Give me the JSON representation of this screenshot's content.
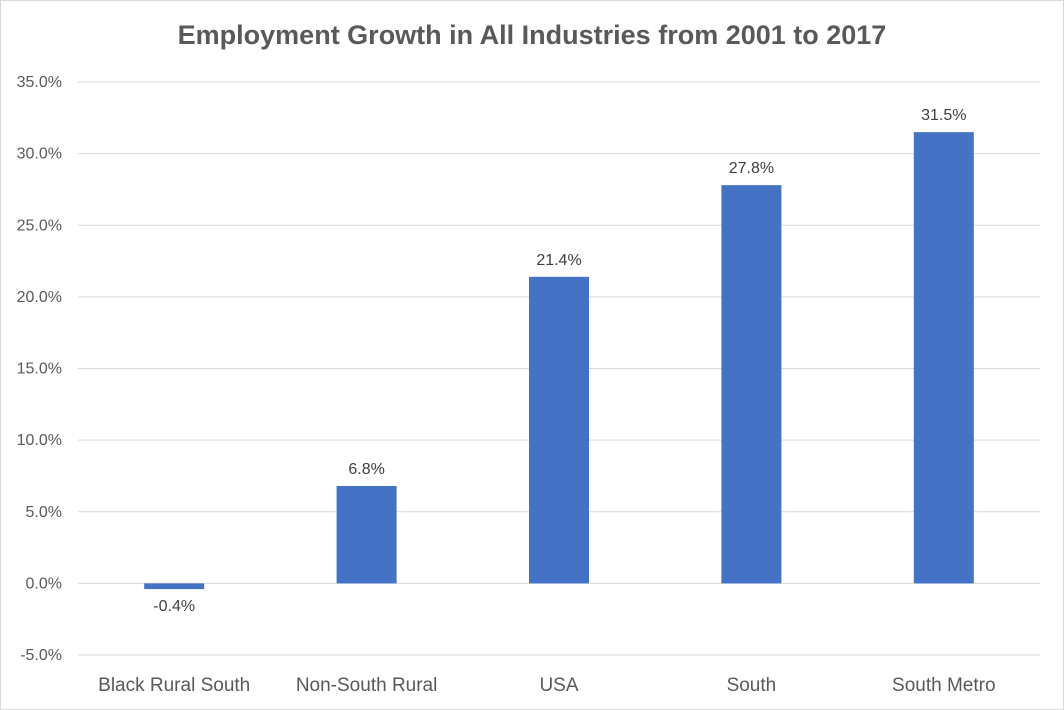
{
  "chart_data": {
    "type": "bar",
    "title": "Employment Growth in All Industries from 2001 to 2017",
    "xlabel": "",
    "ylabel": "",
    "categories": [
      "Black Rural South",
      "Non-South Rural",
      "USA",
      "South",
      "South Metro"
    ],
    "values": [
      -0.4,
      6.8,
      21.4,
      27.8,
      31.5
    ],
    "data_labels": [
      "-0.4%",
      "6.8%",
      "21.4%",
      "27.8%",
      "31.5%"
    ],
    "ylim": [
      -5,
      35
    ],
    "yticks": [
      -5,
      0,
      5,
      10,
      15,
      20,
      25,
      30,
      35
    ],
    "ytick_labels": [
      "-5.0%",
      "0.0%",
      "5.0%",
      "10.0%",
      "15.0%",
      "20.0%",
      "25.0%",
      "30.0%",
      "35.0%"
    ],
    "grid": true,
    "legend": "none",
    "bar_color": "#4472c4",
    "grid_color": "#d9d9d9"
  }
}
